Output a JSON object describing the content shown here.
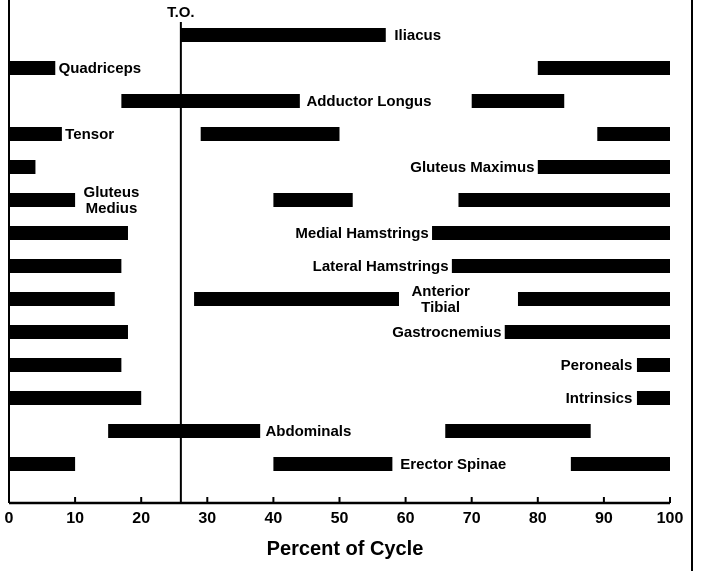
{
  "chart_data": {
    "type": "bar",
    "subtype": "timeline",
    "title": "",
    "xlabel": "Percent of Cycle",
    "ylabel": "",
    "xlim": [
      0,
      100
    ],
    "xticks": [
      0,
      10,
      20,
      30,
      40,
      50,
      60,
      70,
      80,
      90,
      100
    ],
    "grid": false,
    "reference_line": {
      "x": 26,
      "label": "T.O."
    },
    "muscles": [
      {
        "name": "Iliacus",
        "intervals": [
          [
            26,
            57
          ]
        ]
      },
      {
        "name": "Quadriceps",
        "intervals": [
          [
            0,
            7
          ],
          [
            80,
            100
          ]
        ]
      },
      {
        "name": "Adductor Longus",
        "intervals": [
          [
            17,
            44
          ],
          [
            70,
            84
          ]
        ]
      },
      {
        "name": "Tensor",
        "intervals": [
          [
            0,
            8
          ],
          [
            29,
            50
          ],
          [
            89,
            100
          ]
        ]
      },
      {
        "name": "Gluteus Maximus",
        "intervals": [
          [
            0,
            4
          ],
          [
            80,
            100
          ]
        ]
      },
      {
        "name": "Gluteus Medius",
        "intervals": [
          [
            0,
            10
          ],
          [
            40,
            52
          ],
          [
            68,
            100
          ]
        ]
      },
      {
        "name": "Medial Hamstrings",
        "intervals": [
          [
            0,
            18
          ],
          [
            64,
            100
          ]
        ]
      },
      {
        "name": "Lateral Hamstrings",
        "intervals": [
          [
            0,
            17
          ],
          [
            67,
            100
          ]
        ]
      },
      {
        "name": "Anterior Tibial",
        "intervals": [
          [
            0,
            16
          ],
          [
            28,
            59
          ],
          [
            77,
            100
          ]
        ]
      },
      {
        "name": "Gastrocnemius",
        "intervals": [
          [
            0,
            18
          ],
          [
            75,
            100
          ]
        ]
      },
      {
        "name": "Peroneals",
        "intervals": [
          [
            0,
            17
          ],
          [
            95,
            100
          ]
        ]
      },
      {
        "name": "Intrinsics",
        "intervals": [
          [
            0,
            20
          ],
          [
            95,
            100
          ]
        ]
      },
      {
        "name": "Abdominals",
        "intervals": [
          [
            15,
            38
          ],
          [
            66,
            88
          ]
        ]
      },
      {
        "name": "Erector Spinae",
        "intervals": [
          [
            0,
            10
          ],
          [
            40,
            58
          ],
          [
            85,
            100
          ]
        ]
      }
    ],
    "labels": [
      {
        "row": 0,
        "lines": [
          "Iliacus"
        ],
        "anchor": "start",
        "at": 58.3
      },
      {
        "row": 1,
        "lines": [
          "Quadriceps"
        ],
        "anchor": "start",
        "at": 7.5
      },
      {
        "row": 2,
        "lines": [
          "Adductor Longus"
        ],
        "anchor": "start",
        "at": 45
      },
      {
        "row": 3,
        "lines": [
          "Tensor"
        ],
        "anchor": "start",
        "at": 8.5
      },
      {
        "row": 4,
        "lines": [
          "Gluteus Maximus"
        ],
        "anchor": "end",
        "at": 79.5
      },
      {
        "row": 5,
        "lines": [
          "Gluteus",
          "Medius"
        ],
        "anchor": "middle",
        "at": 15.5
      },
      {
        "row": 6,
        "lines": [
          "Medial Hamstrings"
        ],
        "anchor": "end",
        "at": 63.5
      },
      {
        "row": 7,
        "lines": [
          "Lateral Hamstrings"
        ],
        "anchor": "end",
        "at": 66.5
      },
      {
        "row": 8,
        "lines": [
          "Anterior",
          "Tibial"
        ],
        "anchor": "middle",
        "at": 65.3
      },
      {
        "row": 9,
        "lines": [
          "Gastrocnemius"
        ],
        "anchor": "end",
        "at": 74.5
      },
      {
        "row": 10,
        "lines": [
          "Peroneals"
        ],
        "anchor": "end",
        "at": 94.3
      },
      {
        "row": 11,
        "lines": [
          "Intrinsics"
        ],
        "anchor": "end",
        "at": 94.3
      },
      {
        "row": 12,
        "lines": [
          "Abdominals"
        ],
        "anchor": "start",
        "at": 38.8
      },
      {
        "row": 13,
        "lines": [
          "Erector Spinae"
        ],
        "anchor": "start",
        "at": 59.2
      }
    ]
  }
}
